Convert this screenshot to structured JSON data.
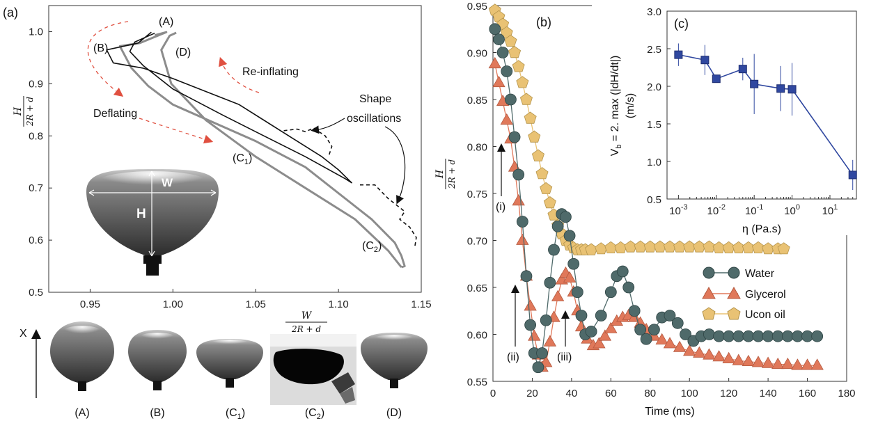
{
  "panel_a": {
    "panel_label": "(a)",
    "ylabel_num": "H",
    "ylabel_den": "2R + d",
    "xlabel_num": "W",
    "xlabel_den": "2R + d",
    "labels": {
      "A": "(A)",
      "B": "(B)",
      "D": "(D)",
      "C1": "(C",
      "C1_sub": "1",
      "C1_close": ")",
      "C2": "(C",
      "C2_sub": "2",
      "C2_close": ")",
      "reinflating": "Re-inflating",
      "deflating": "Deflating",
      "shape1": "Shape",
      "shape2": "oscillations",
      "inset_w": "W",
      "inset_h": "H"
    }
  },
  "panel_a_bottom": {
    "arrow_label": "X",
    "captions": [
      "(A)",
      "(B)",
      "(C",
      "(C",
      "(D)"
    ],
    "c1_sub": "1",
    "c2_sub": "2",
    "close": ")"
  },
  "panel_b": {
    "panel_label": "(b)",
    "ylabel_num": "H",
    "ylabel_den": "2R + d",
    "xlabel": "Time (ms)",
    "annotations": {
      "i": "(i)",
      "ii": "(ii)",
      "iii": "(iii)"
    }
  },
  "panel_c": {
    "panel_label": "(c)",
    "ylabel": "V",
    "ylabel_sub": "b",
    "ylabel_rest": " = 2. max (|dH/dt|)",
    "ylabel_unit": "(m/s)",
    "xlabel": "η (Pa.s)"
  },
  "colors": {
    "water": "#4f6a6a",
    "glycerol": "#e0785a",
    "ucon": "#e9c274",
    "inset": "#3048a0"
  },
  "chart_data": [
    {
      "type": "line",
      "panel": "a",
      "xlim": [
        0.925,
        1.15
      ],
      "ylim": [
        0.5,
        1.05
      ],
      "x_ticks": [
        "0.95",
        "1.00",
        "1.05",
        "1.10",
        "1.15"
      ],
      "y_ticks": [
        "0.5",
        "0.6",
        "0.7",
        "0.8",
        "0.9",
        "1.0"
      ],
      "series": [
        {
          "style": "gray-thick",
          "x": [
            0.989,
            0.996,
            0.98,
            0.968,
            0.975,
            0.985,
            1.0,
            1.05,
            1.08,
            1.12,
            1.134,
            1.138,
            1.14,
            1.138
          ],
          "y": [
            0.993,
            0.999,
            0.978,
            0.972,
            0.93,
            0.896,
            0.86,
            0.79,
            0.74,
            0.64,
            0.595,
            0.57,
            0.55,
            0.548
          ]
        },
        {
          "style": "gray-thick",
          "x": [
            1.138,
            1.13,
            1.11,
            1.08,
            1.05,
            1.02,
            0.999,
            0.993,
            0.998,
            1.002
          ],
          "y": [
            0.548,
            0.58,
            0.64,
            0.7,
            0.76,
            0.83,
            0.9,
            0.965,
            0.992,
            0.998
          ]
        },
        {
          "style": "black",
          "x": [
            0.987,
            0.979,
            0.96,
            0.964,
            0.982,
            1.0,
            1.04,
            1.07,
            1.09,
            1.1,
            1.108,
            1.104,
            1.08,
            1.055,
            1.03,
            1.0,
            0.982,
            0.974,
            0.977,
            0.989
          ],
          "y": [
            0.999,
            0.978,
            0.965,
            0.94,
            0.93,
            0.91,
            0.86,
            0.8,
            0.76,
            0.735,
            0.71,
            0.718,
            0.76,
            0.8,
            0.84,
            0.89,
            0.935,
            0.962,
            0.98,
            0.997
          ]
        },
        {
          "style": "dashed",
          "x": [
            1.067,
            1.075,
            1.08,
            1.085,
            1.092,
            1.096,
            1.094
          ],
          "y": [
            0.81,
            0.813,
            0.808,
            0.815,
            0.8,
            0.78,
            0.76
          ]
        },
        {
          "style": "dashed",
          "x": [
            1.113,
            1.122,
            1.13,
            1.14,
            1.137,
            1.143,
            1.147,
            1.146
          ],
          "y": [
            0.706,
            0.706,
            0.68,
            0.655,
            0.64,
            0.625,
            0.605,
            0.585
          ]
        }
      ]
    },
    {
      "type": "scatter",
      "panel": "b",
      "xlabel": "Time (ms)",
      "xlim": [
        0,
        180
      ],
      "ylim": [
        0.55,
        0.95
      ],
      "x_ticks": [
        "0",
        "20",
        "40",
        "60",
        "80",
        "100",
        "120",
        "140",
        "160",
        "180"
      ],
      "y_ticks": [
        "0.55",
        "0.60",
        "0.65",
        "0.70",
        "0.75",
        "0.80",
        "0.85",
        "0.90",
        "0.95"
      ],
      "legend_position": "right",
      "series": [
        {
          "name": "Water",
          "marker": "circle",
          "x": [
            1,
            3,
            5,
            7,
            9,
            11,
            13,
            15,
            17,
            19,
            21,
            23,
            25,
            27,
            29,
            31,
            33,
            35,
            37,
            39,
            41,
            43,
            45,
            47,
            50,
            55,
            60,
            63,
            66,
            69,
            72,
            75,
            78,
            82,
            86,
            90,
            94,
            98,
            102,
            106,
            110,
            115,
            120,
            125,
            130,
            135,
            140,
            145,
            150,
            155,
            160,
            165
          ],
          "y": [
            0.925,
            0.914,
            0.9,
            0.88,
            0.85,
            0.81,
            0.77,
            0.72,
            0.662,
            0.61,
            0.58,
            0.565,
            0.58,
            0.615,
            0.655,
            0.69,
            0.715,
            0.728,
            0.725,
            0.705,
            0.675,
            0.645,
            0.62,
            0.6,
            0.603,
            0.62,
            0.645,
            0.662,
            0.667,
            0.65,
            0.625,
            0.605,
            0.595,
            0.605,
            0.618,
            0.62,
            0.612,
            0.6,
            0.593,
            0.598,
            0.6,
            0.598,
            0.598,
            0.598,
            0.598,
            0.598,
            0.598,
            0.598,
            0.598,
            0.598,
            0.598,
            0.598
          ]
        },
        {
          "name": "Glycerol",
          "marker": "triangle",
          "x": [
            1,
            3,
            5,
            7,
            9,
            11,
            13,
            15,
            17,
            19,
            21,
            23,
            25,
            27,
            29,
            31,
            33,
            35,
            37,
            39,
            41,
            43,
            45,
            48,
            51,
            54,
            57,
            60,
            63,
            66,
            69,
            72,
            75,
            78,
            82,
            86,
            90,
            95,
            100,
            105,
            110,
            115,
            120,
            125,
            130,
            135,
            140,
            145,
            150,
            155,
            160,
            165
          ],
          "y": [
            0.888,
            0.868,
            0.848,
            0.828,
            0.808,
            0.778,
            0.742,
            0.7,
            0.662,
            0.63,
            0.598,
            0.578,
            0.565,
            0.57,
            0.592,
            0.618,
            0.64,
            0.658,
            0.665,
            0.66,
            0.645,
            0.625,
            0.608,
            0.595,
            0.588,
            0.59,
            0.598,
            0.606,
            0.614,
            0.618,
            0.62,
            0.618,
            0.612,
            0.605,
            0.598,
            0.594,
            0.59,
            0.586,
            0.582,
            0.58,
            0.578,
            0.576,
            0.574,
            0.572,
            0.571,
            0.57,
            0.569,
            0.568,
            0.568,
            0.567,
            0.567,
            0.567
          ]
        },
        {
          "name": "Ucon oil",
          "marker": "pentagon",
          "x": [
            1,
            3,
            5,
            7,
            9,
            11,
            13,
            15,
            17,
            19,
            21,
            23,
            25,
            27,
            29,
            31,
            33,
            35,
            37,
            39,
            41,
            43,
            45,
            47,
            50,
            55,
            60,
            65,
            70,
            75,
            80,
            85,
            90,
            95,
            100,
            105,
            110,
            115,
            120,
            125,
            130,
            135,
            140,
            145,
            148
          ],
          "y": [
            0.945,
            0.938,
            0.93,
            0.921,
            0.912,
            0.9,
            0.885,
            0.868,
            0.85,
            0.83,
            0.81,
            0.79,
            0.771,
            0.755,
            0.74,
            0.727,
            0.716,
            0.707,
            0.7,
            0.695,
            0.692,
            0.69,
            0.69,
            0.69,
            0.69,
            0.691,
            0.692,
            0.692,
            0.693,
            0.693,
            0.693,
            0.693,
            0.693,
            0.693,
            0.693,
            0.693,
            0.693,
            0.692,
            0.692,
            0.692,
            0.692,
            0.692,
            0.691,
            0.691,
            0.691
          ]
        }
      ]
    },
    {
      "type": "line",
      "panel": "c",
      "xscale": "log",
      "xlim": [
        0.0005,
        50
      ],
      "ylim": [
        0.5,
        3.0
      ],
      "x_ticks": [
        "10-3",
        "10-2",
        "10-1",
        "100",
        "101"
      ],
      "y_ticks": [
        "0.5",
        "1.0",
        "1.5",
        "2.0",
        "2.5",
        "3.0"
      ],
      "series": [
        {
          "x": [
            0.001,
            0.005,
            0.01,
            0.05,
            0.1,
            0.5,
            1,
            40
          ],
          "y": [
            2.42,
            2.35,
            2.1,
            2.23,
            2.03,
            1.97,
            1.96,
            0.82
          ],
          "err": [
            0.15,
            0.2,
            0.05,
            0.15,
            0.4,
            0.3,
            0.35,
            0.2
          ]
        }
      ]
    }
  ]
}
